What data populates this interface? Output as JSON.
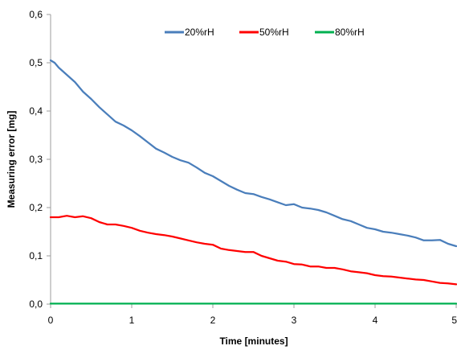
{
  "chart_data": {
    "type": "line",
    "title": "",
    "xlabel": "Time [minutes]",
    "ylabel": "Measuring error [mg]",
    "xlim": [
      0,
      5
    ],
    "ylim": [
      0,
      0.6
    ],
    "x_ticks": [
      0,
      1,
      2,
      3,
      4,
      5
    ],
    "x_tick_labels": [
      "0",
      "1",
      "2",
      "3",
      "4",
      "5"
    ],
    "y_ticks": [
      0,
      0.1,
      0.2,
      0.3,
      0.4,
      0.5,
      0.6
    ],
    "y_tick_labels": [
      "0,0",
      "0,1",
      "0,2",
      "0,3",
      "0,4",
      "0,5",
      "0,6"
    ],
    "grid": false,
    "legend_position": "top-right",
    "series": [
      {
        "name": "20%rH",
        "color": "#4a7ebb",
        "x": [
          0,
          0.05,
          0.1,
          0.2,
          0.3,
          0.4,
          0.5,
          0.6,
          0.7,
          0.8,
          0.9,
          1.0,
          1.1,
          1.2,
          1.3,
          1.4,
          1.5,
          1.6,
          1.7,
          1.8,
          1.9,
          2.0,
          2.1,
          2.2,
          2.3,
          2.4,
          2.5,
          2.6,
          2.7,
          2.8,
          2.9,
          3.0,
          3.1,
          3.2,
          3.3,
          3.4,
          3.5,
          3.6,
          3.7,
          3.8,
          3.9,
          4.0,
          4.1,
          4.2,
          4.3,
          4.4,
          4.5,
          4.6,
          4.7,
          4.8,
          4.9,
          5.0
        ],
        "y": [
          0.505,
          0.5,
          0.49,
          0.475,
          0.46,
          0.44,
          0.425,
          0.408,
          0.393,
          0.378,
          0.37,
          0.36,
          0.348,
          0.335,
          0.322,
          0.314,
          0.305,
          0.298,
          0.293,
          0.283,
          0.272,
          0.265,
          0.255,
          0.245,
          0.237,
          0.23,
          0.228,
          0.222,
          0.217,
          0.211,
          0.205,
          0.207,
          0.2,
          0.198,
          0.195,
          0.19,
          0.183,
          0.176,
          0.172,
          0.165,
          0.158,
          0.155,
          0.15,
          0.148,
          0.145,
          0.142,
          0.138,
          0.132,
          0.132,
          0.133,
          0.125,
          0.12
        ]
      },
      {
        "name": "50%rH",
        "color": "#ff0000",
        "x": [
          0,
          0.1,
          0.2,
          0.3,
          0.4,
          0.5,
          0.6,
          0.7,
          0.8,
          0.9,
          1.0,
          1.1,
          1.2,
          1.3,
          1.4,
          1.5,
          1.6,
          1.7,
          1.8,
          1.9,
          2.0,
          2.1,
          2.2,
          2.3,
          2.4,
          2.5,
          2.6,
          2.7,
          2.8,
          2.9,
          3.0,
          3.1,
          3.2,
          3.3,
          3.4,
          3.5,
          3.6,
          3.7,
          3.8,
          3.9,
          4.0,
          4.1,
          4.2,
          4.3,
          4.4,
          4.5,
          4.6,
          4.7,
          4.8,
          4.9,
          5.0
        ],
        "y": [
          0.18,
          0.18,
          0.183,
          0.18,
          0.182,
          0.178,
          0.17,
          0.165,
          0.165,
          0.162,
          0.158,
          0.152,
          0.148,
          0.145,
          0.143,
          0.14,
          0.136,
          0.132,
          0.128,
          0.125,
          0.123,
          0.115,
          0.112,
          0.11,
          0.108,
          0.108,
          0.1,
          0.095,
          0.09,
          0.088,
          0.083,
          0.082,
          0.078,
          0.078,
          0.075,
          0.075,
          0.072,
          0.068,
          0.066,
          0.064,
          0.06,
          0.058,
          0.057,
          0.055,
          0.053,
          0.051,
          0.05,
          0.047,
          0.044,
          0.043,
          0.041
        ]
      },
      {
        "name": "80%rH",
        "color": "#00b050",
        "x": [
          0,
          5
        ],
        "y": [
          0.001,
          0.001
        ]
      }
    ]
  }
}
